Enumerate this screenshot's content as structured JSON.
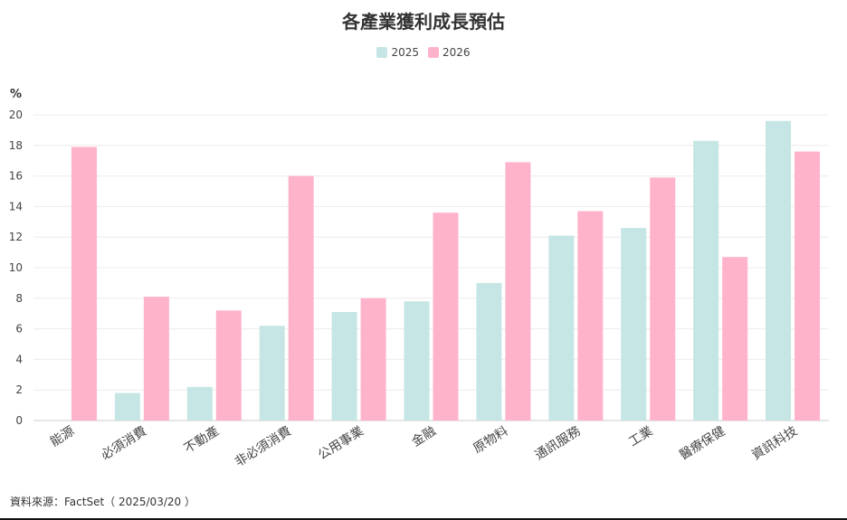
{
  "chart_data": {
    "type": "bar",
    "title": "各產業獲利成長預估",
    "ylabel": "%",
    "ylim": [
      0,
      20
    ],
    "yticks": [
      0,
      2,
      4,
      6,
      8,
      10,
      12,
      14,
      16,
      18,
      20
    ],
    "grid": true,
    "legend_position": "top-center",
    "categories": [
      "能源",
      "必須消費",
      "不動產",
      "非必須消費",
      "公用事業",
      "金融",
      "原物料",
      "通訊服務",
      "工業",
      "醫療保健",
      "資訊科技"
    ],
    "series": [
      {
        "name": "2025",
        "color": "#c5e6e4",
        "values": [
          null,
          1.8,
          2.2,
          6.2,
          7.1,
          7.8,
          9.0,
          12.1,
          12.6,
          18.3,
          19.6
        ]
      },
      {
        "name": "2026",
        "color": "#ffb3cb",
        "values": [
          17.9,
          8.1,
          7.2,
          16.0,
          8.0,
          13.6,
          16.9,
          13.7,
          15.9,
          10.7,
          17.6
        ]
      }
    ]
  },
  "source": "資料來源：FactSet（ 2025/03/20 ）"
}
